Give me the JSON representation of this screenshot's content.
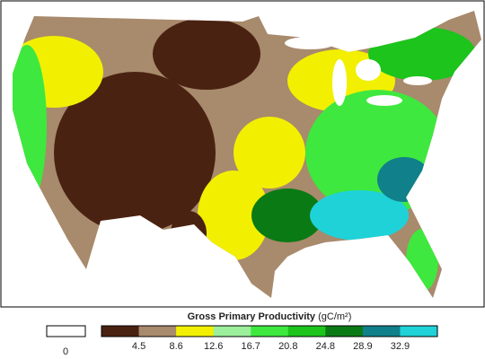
{
  "legend": {
    "title": "Gross Primary Productivity",
    "unit": "(gC/m²)",
    "zero_label": "0",
    "colors": [
      "#4a2212",
      "#a88a6c",
      "#f2f000",
      "#9cf09c",
      "#3ee83e",
      "#1cc41c",
      "#0a7a14",
      "#10808a",
      "#1ed2d8"
    ],
    "breaks": [
      4.5,
      8.6,
      12.6,
      16.7,
      20.8,
      24.8,
      28.9,
      32.9
    ]
  }
}
